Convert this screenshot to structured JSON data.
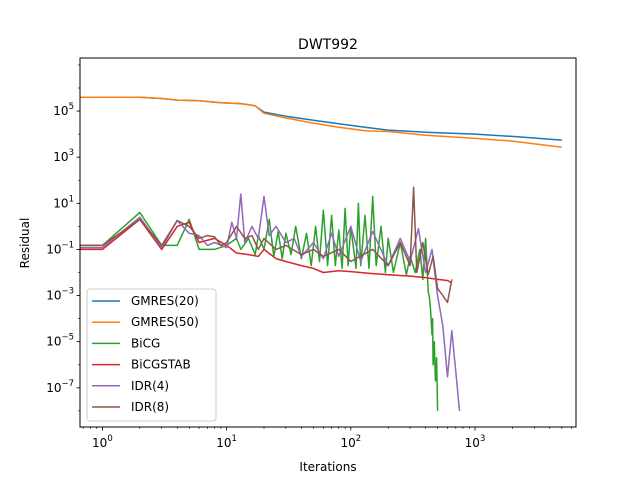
{
  "chart_data": {
    "type": "line",
    "title": "DWT992",
    "xlabel": "Iterations",
    "ylabel": "Residual",
    "xscale": "log",
    "yscale": "log",
    "xlim": [
      0.66,
      6500
    ],
    "ylim": [
      2e-09,
      20000000.0
    ],
    "grid": false,
    "legend_position": "lower-left",
    "x_ticks": [
      {
        "base": "10",
        "exp": "0",
        "value": 1
      },
      {
        "base": "10",
        "exp": "1",
        "value": 10
      },
      {
        "base": "10",
        "exp": "2",
        "value": 100
      },
      {
        "base": "10",
        "exp": "3",
        "value": 1000
      }
    ],
    "y_ticks": [
      {
        "base": "10",
        "exp": "5",
        "value": 100000
      },
      {
        "base": "10",
        "exp": "3",
        "value": 1000
      },
      {
        "base": "10",
        "exp": "1",
        "value": 10
      },
      {
        "base": "10",
        "exp": "−1",
        "value": 0.1
      },
      {
        "base": "10",
        "exp": "−3",
        "value": 0.001
      },
      {
        "base": "10",
        "exp": "−5",
        "value": 1e-05
      },
      {
        "base": "10",
        "exp": "−7",
        "value": 1e-07
      }
    ],
    "series": [
      {
        "name": "GMRES(20)",
        "color": "#1f77b4",
        "points": [
          [
            0.66,
            400000
          ],
          [
            1,
            400000
          ],
          [
            2,
            400000
          ],
          [
            3,
            350000
          ],
          [
            4,
            300000
          ],
          [
            6,
            280000
          ],
          [
            9,
            230000
          ],
          [
            13,
            210000
          ],
          [
            17,
            170000
          ],
          [
            20,
            90000
          ],
          [
            30,
            60000
          ],
          [
            50,
            40000
          ],
          [
            80,
            28000
          ],
          [
            130,
            20000
          ],
          [
            200,
            15000
          ],
          [
            400,
            12000
          ],
          [
            1000,
            10000
          ],
          [
            2000,
            8000
          ],
          [
            5000,
            5500
          ]
        ]
      },
      {
        "name": "GMRES(50)",
        "color": "#ff7f0e",
        "points": [
          [
            0.66,
            400000
          ],
          [
            1,
            400000
          ],
          [
            2,
            400000
          ],
          [
            3,
            350000
          ],
          [
            4,
            300000
          ],
          [
            6,
            280000
          ],
          [
            9,
            230000
          ],
          [
            13,
            210000
          ],
          [
            17,
            170000
          ],
          [
            20,
            80000
          ],
          [
            30,
            50000
          ],
          [
            50,
            30000
          ],
          [
            80,
            20000
          ],
          [
            130,
            14000
          ],
          [
            200,
            13000
          ],
          [
            400,
            9000
          ],
          [
            1000,
            6500
          ],
          [
            2000,
            5000
          ],
          [
            5000,
            2700
          ]
        ]
      },
      {
        "name": "BiCG",
        "color": "#2ca02c",
        "points": [
          [
            0.66,
            0.15
          ],
          [
            1,
            0.15
          ],
          [
            2,
            4
          ],
          [
            3,
            0.15
          ],
          [
            4,
            0.15
          ],
          [
            5,
            2
          ],
          [
            6,
            0.1
          ],
          [
            8,
            0.1
          ],
          [
            10,
            0.15
          ],
          [
            12,
            0.3
          ],
          [
            13,
            0.1
          ],
          [
            15,
            0.3
          ],
          [
            17,
            0.06
          ],
          [
            18,
            0.4
          ],
          [
            20,
            0.1
          ],
          [
            22,
            2
          ],
          [
            24,
            0.05
          ],
          [
            26,
            0.6
          ],
          [
            28,
            0.04
          ],
          [
            30,
            0.5
          ],
          [
            33,
            0.06
          ],
          [
            36,
            1
          ],
          [
            40,
            0.04
          ],
          [
            44,
            0.5
          ],
          [
            48,
            0.02
          ],
          [
            52,
            1
          ],
          [
            56,
            0.03
          ],
          [
            60,
            5
          ],
          [
            65,
            0.02
          ],
          [
            70,
            3
          ],
          [
            75,
            0.02
          ],
          [
            80,
            0.7
          ],
          [
            85,
            0.015
          ],
          [
            90,
            6
          ],
          [
            95,
            0.02
          ],
          [
            100,
            1
          ],
          [
            110,
            0.015
          ],
          [
            115,
            10
          ],
          [
            120,
            0.02
          ],
          [
            130,
            3
          ],
          [
            140,
            0.015
          ],
          [
            150,
            20
          ],
          [
            160,
            0.02
          ],
          [
            175,
            1
          ],
          [
            190,
            0.01
          ],
          [
            200,
            0.3
          ],
          [
            220,
            0.01
          ],
          [
            250,
            0.2
          ],
          [
            280,
            0.008
          ],
          [
            300,
            0.05
          ],
          [
            330,
            0.01
          ],
          [
            360,
            0.1
          ],
          [
            380,
            0.005
          ],
          [
            400,
            0.3
          ],
          [
            420,
            0.0015
          ],
          [
            430,
            0.0008
          ],
          [
            440,
            0.0002
          ],
          [
            450,
            2e-05
          ],
          [
            455,
            0.0001
          ],
          [
            460,
            1e-06
          ],
          [
            470,
            1e-05
          ],
          [
            480,
            2e-07
          ],
          [
            490,
            2e-06
          ],
          [
            500,
            1e-08
          ]
        ]
      },
      {
        "name": "BiCGSTAB",
        "color": "#d62728",
        "points": [
          [
            0.66,
            0.1
          ],
          [
            1,
            0.1
          ],
          [
            2,
            2
          ],
          [
            3,
            0.1
          ],
          [
            4,
            1
          ],
          [
            5,
            1.5
          ],
          [
            6,
            0.2
          ],
          [
            8,
            0.3
          ],
          [
            10,
            0.15
          ],
          [
            12,
            0.07
          ],
          [
            15,
            0.06
          ],
          [
            18,
            0.05
          ],
          [
            20,
            0.1
          ],
          [
            25,
            0.04
          ],
          [
            30,
            0.03
          ],
          [
            40,
            0.02
          ],
          [
            50,
            0.015
          ],
          [
            60,
            0.01
          ],
          [
            80,
            0.012
          ],
          [
            100,
            0.011
          ],
          [
            150,
            0.009
          ],
          [
            200,
            0.008
          ],
          [
            300,
            0.007
          ],
          [
            400,
            0.006
          ],
          [
            500,
            0.005
          ],
          [
            600,
            0.0045
          ],
          [
            650,
            0.0035
          ]
        ]
      },
      {
        "name": "IDR(4)",
        "color": "#9467bd",
        "points": [
          [
            0.66,
            0.12
          ],
          [
            1,
            0.12
          ],
          [
            2,
            2.5
          ],
          [
            3,
            0.12
          ],
          [
            4,
            1.8
          ],
          [
            5,
            0.5
          ],
          [
            6,
            0.4
          ],
          [
            7,
            0.15
          ],
          [
            8,
            0.2
          ],
          [
            10,
            0.12
          ],
          [
            11,
            1.5
          ],
          [
            12,
            0.3
          ],
          [
            13,
            25
          ],
          [
            14,
            0.2
          ],
          [
            16,
            1
          ],
          [
            18,
            0.3
          ],
          [
            20,
            20
          ],
          [
            22,
            0.4
          ],
          [
            25,
            1
          ],
          [
            30,
            0.2
          ],
          [
            35,
            0.3
          ],
          [
            40,
            0.05
          ],
          [
            50,
            0.2
          ],
          [
            60,
            0.04
          ],
          [
            70,
            0.5
          ],
          [
            80,
            0.05
          ],
          [
            100,
            1
          ],
          [
            120,
            0.03
          ],
          [
            150,
            0.6
          ],
          [
            200,
            0.02
          ],
          [
            250,
            0.3
          ],
          [
            300,
            0.03
          ],
          [
            350,
            0.8
          ],
          [
            400,
            0.01
          ],
          [
            450,
            0.1
          ],
          [
            500,
            0.001
          ],
          [
            550,
            5e-05
          ],
          [
            600,
            3e-07
          ],
          [
            650,
            3e-05
          ],
          [
            700,
            5e-07
          ],
          [
            750,
            1e-08
          ]
        ]
      },
      {
        "name": "IDR(8)",
        "color": "#8c564b",
        "points": [
          [
            0.66,
            0.15
          ],
          [
            1,
            0.15
          ],
          [
            2,
            2
          ],
          [
            3,
            0.15
          ],
          [
            4,
            1.8
          ],
          [
            5,
            1
          ],
          [
            6,
            0.3
          ],
          [
            7,
            0.4
          ],
          [
            8,
            0.35
          ],
          [
            9,
            0.15
          ],
          [
            10,
            0.2
          ],
          [
            12,
            1
          ],
          [
            14,
            0.3
          ],
          [
            16,
            0.4
          ],
          [
            18,
            0.1
          ],
          [
            20,
            0.3
          ],
          [
            25,
            0.1
          ],
          [
            30,
            0.15
          ],
          [
            40,
            0.06
          ],
          [
            50,
            0.1
          ],
          [
            60,
            0.05
          ],
          [
            80,
            0.1
          ],
          [
            100,
            0.03
          ],
          [
            150,
            0.1
          ],
          [
            200,
            0.02
          ],
          [
            250,
            0.2
          ],
          [
            300,
            0.02
          ],
          [
            320,
            50
          ],
          [
            340,
            0.01
          ],
          [
            380,
            0.2
          ],
          [
            420,
            0.008
          ],
          [
            460,
            0.05
          ],
          [
            500,
            0.002
          ],
          [
            550,
            0.001
          ],
          [
            600,
            0.0005
          ],
          [
            650,
            0.005
          ]
        ]
      }
    ]
  }
}
